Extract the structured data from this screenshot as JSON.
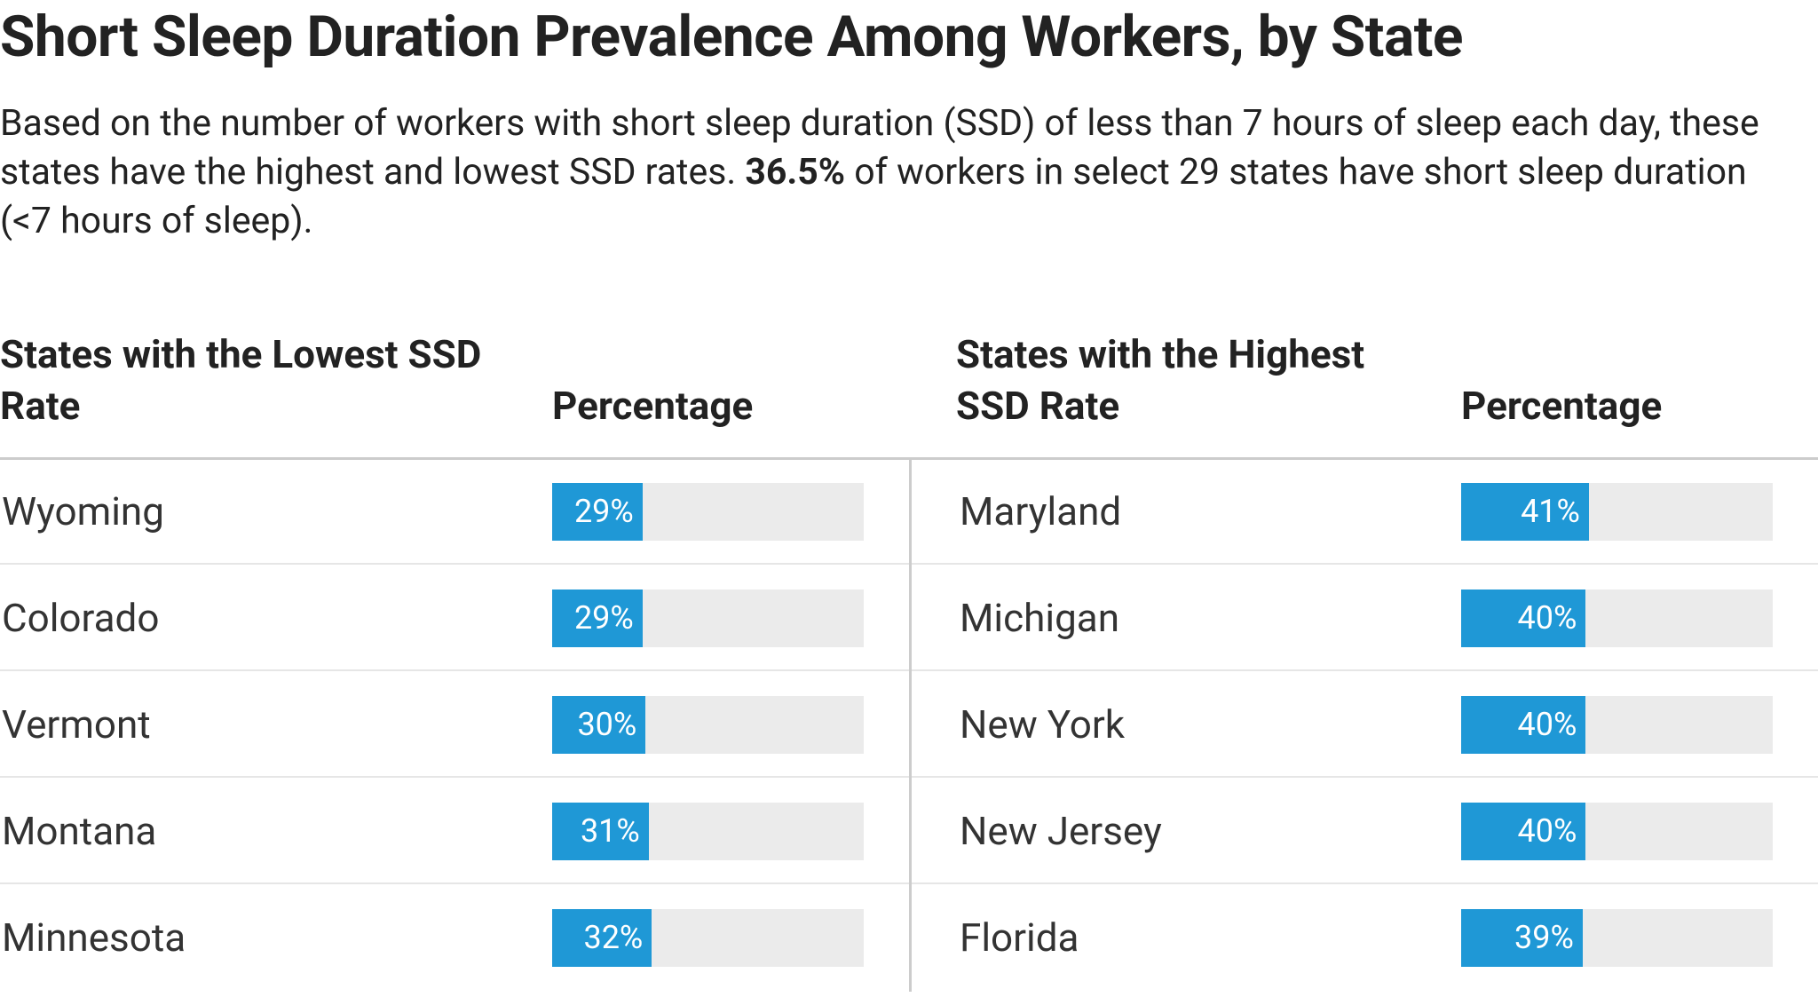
{
  "title": "Short Sleep Duration Prevalence Among Workers, by State",
  "description": [
    "Based on the number of workers with short sleep duration (SSD) of less than 7 hours of sleep each day, these states have the highest and lowest SSD rates. ",
    "36.5%",
    " of workers in select 29 states have short sleep duration (<7 hours of sleep)."
  ],
  "xlim": [
    0,
    100
  ],
  "bar_color": "#1f98d6",
  "track_color": "#ebebeb",
  "tables": [
    {
      "name_header": "States with the Lowest SSD Rate",
      "value_header": "Percentage",
      "rows": [
        {
          "state": "Wyoming",
          "value": 29,
          "value_label": "29%"
        },
        {
          "state": "Colorado",
          "value": 29,
          "value_label": "29%"
        },
        {
          "state": "Vermont",
          "value": 30,
          "value_label": "30%"
        },
        {
          "state": "Montana",
          "value": 31,
          "value_label": "31%"
        },
        {
          "state": "Minnesota",
          "value": 32,
          "value_label": "32%"
        }
      ]
    },
    {
      "name_header": "States with the Highest SSD Rate",
      "value_header": "Percentage",
      "rows": [
        {
          "state": "Maryland",
          "value": 41,
          "value_label": "41%"
        },
        {
          "state": "Michigan",
          "value": 40,
          "value_label": "40%"
        },
        {
          "state": "New York",
          "value": 40,
          "value_label": "40%"
        },
        {
          "state": "New Jersey",
          "value": 40,
          "value_label": "40%"
        },
        {
          "state": "Florida",
          "value": 39,
          "value_label": "39%"
        }
      ]
    }
  ]
}
